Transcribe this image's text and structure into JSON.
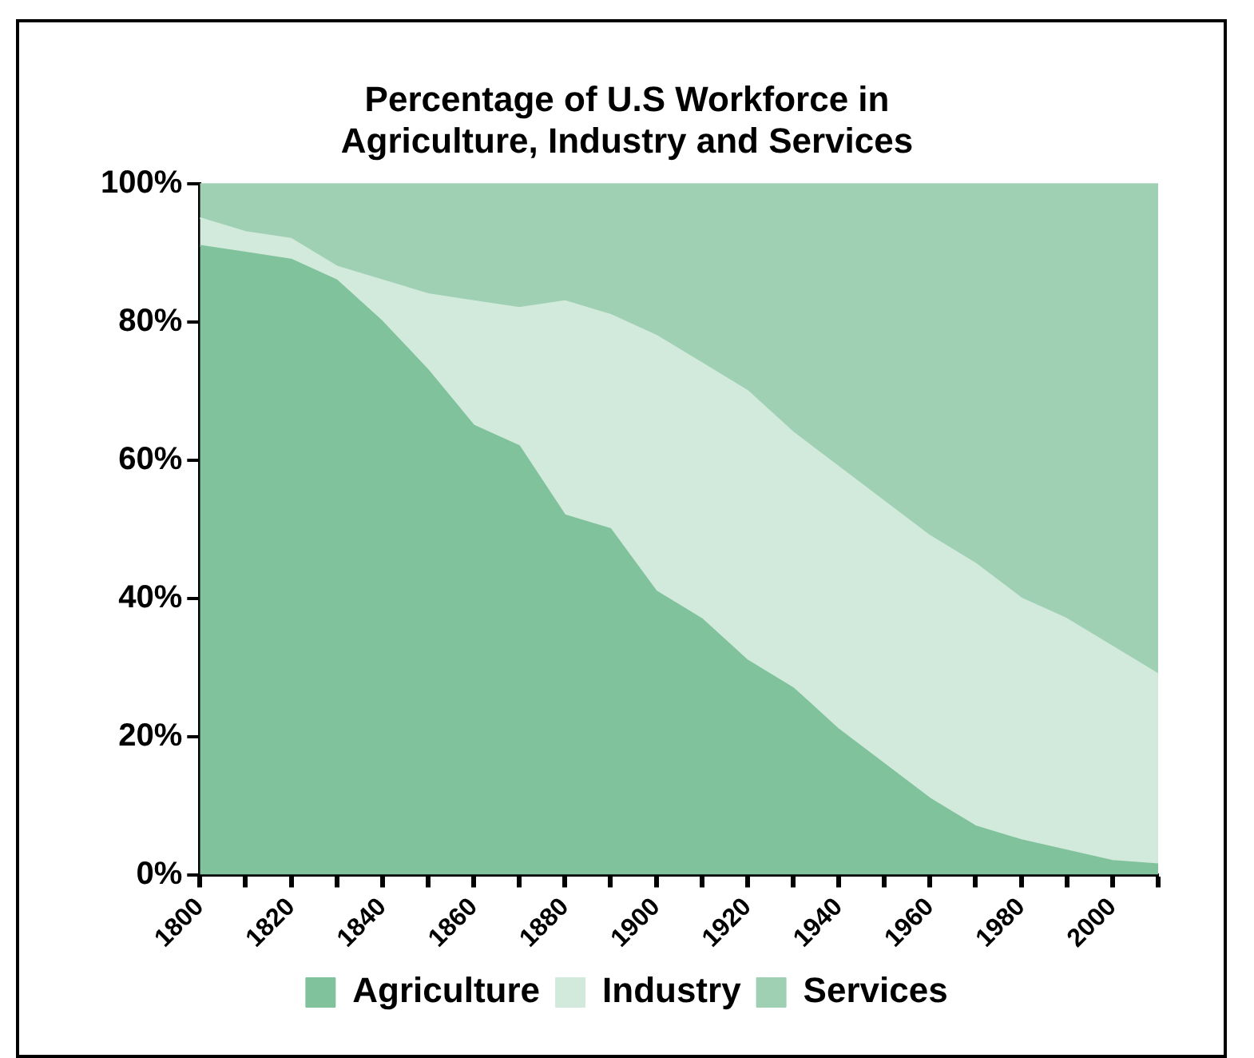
{
  "chart_data": {
    "type": "area",
    "title": "Percentage of U.S Workforce in Agriculture, Industry and Services",
    "categories": [
      "1800",
      null,
      "1820",
      null,
      "1840",
      null,
      "1860",
      null,
      "1880",
      null,
      "1900",
      null,
      "1920",
      null,
      "1940",
      null,
      "1960",
      null,
      "1980",
      null,
      "2000",
      null
    ],
    "stacked": true,
    "series": [
      {
        "name": "Agriculture",
        "color": "#80c29c",
        "values": [
          91,
          90,
          89,
          86,
          80,
          73,
          65,
          62,
          52,
          50,
          41,
          37,
          31,
          27,
          21,
          16,
          11,
          7,
          5,
          3.5,
          2,
          1.5
        ]
      },
      {
        "name": "Industry",
        "color": "#d2eadb",
        "values": [
          4,
          3,
          3,
          2,
          6,
          11,
          18,
          20,
          31,
          31,
          37,
          37,
          39,
          37,
          38,
          38,
          38,
          38,
          35,
          33.5,
          31,
          27.5
        ]
      },
      {
        "name": "Services",
        "color": "#9fd0b3",
        "values": [
          5,
          7,
          8,
          12,
          14,
          16,
          17,
          18,
          17,
          19,
          22,
          26,
          30,
          36,
          41,
          46,
          51,
          55,
          60,
          63,
          67,
          71
        ]
      }
    ],
    "ylim": [
      0,
      100
    ],
    "yticks": [
      {
        "value": 0,
        "label": "0%"
      },
      {
        "value": 20,
        "label": "20%"
      },
      {
        "value": 40,
        "label": "40%"
      },
      {
        "value": 60,
        "label": "60%"
      },
      {
        "value": 80,
        "label": "80%"
      },
      {
        "value": 100,
        "label": "100%"
      }
    ],
    "grid": false,
    "legend": "bottom",
    "marker": "none"
  }
}
